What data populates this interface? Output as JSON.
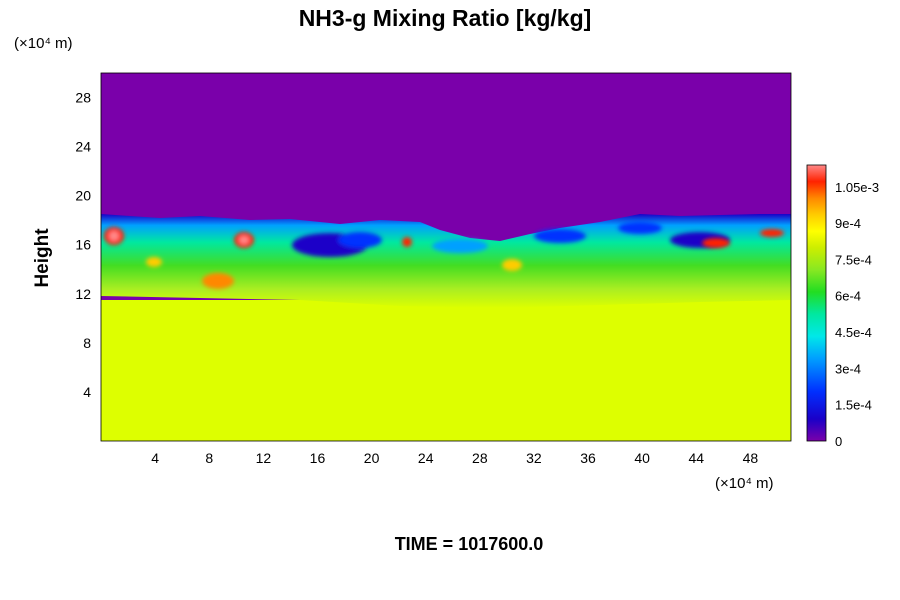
{
  "chart_data": {
    "type": "heatmap",
    "title": "NH3-g Mixing Ratio [kg/kg]",
    "ylabel": "Height",
    "x_unit": "(×10⁴ m)",
    "y_unit": "(×10⁴ m)",
    "x_ticks": [
      4,
      8,
      12,
      16,
      20,
      24,
      28,
      32,
      36,
      40,
      44,
      48
    ],
    "y_ticks": [
      4,
      8,
      12,
      16,
      20,
      24,
      28
    ],
    "xlim": [
      0,
      51
    ],
    "ylim": [
      0,
      30
    ],
    "colorbar": {
      "ticks": [
        {
          "value": 0,
          "label": "0"
        },
        {
          "value": 0.00015,
          "label": "1.5e-4"
        },
        {
          "value": 0.0003,
          "label": "3e-4"
        },
        {
          "value": 0.00045,
          "label": "4.5e-4"
        },
        {
          "value": 0.0006,
          "label": "6e-4"
        },
        {
          "value": 0.00075,
          "label": "7.5e-4"
        },
        {
          "value": 0.0009,
          "label": "9e-4"
        },
        {
          "value": 0.00105,
          "label": "1.05e-3"
        }
      ],
      "range": [
        0,
        0.00114
      ],
      "colors": [
        "#7a00aa",
        "#1a00c8",
        "#0030ff",
        "#00a0ff",
        "#00e8e8",
        "#00e8a0",
        "#22dd22",
        "#88e822",
        "#ccee00",
        "#ffff00",
        "#ffcc00",
        "#ff8800",
        "#ff2200",
        "#ff8888"
      ]
    },
    "field_description": {
      "lower_layer_value": 0.00077,
      "upper_layer_value": 0,
      "mixing_layer_approx_height_range": [
        11,
        18.5
      ]
    },
    "footer": "TIME = 1017600.0"
  }
}
